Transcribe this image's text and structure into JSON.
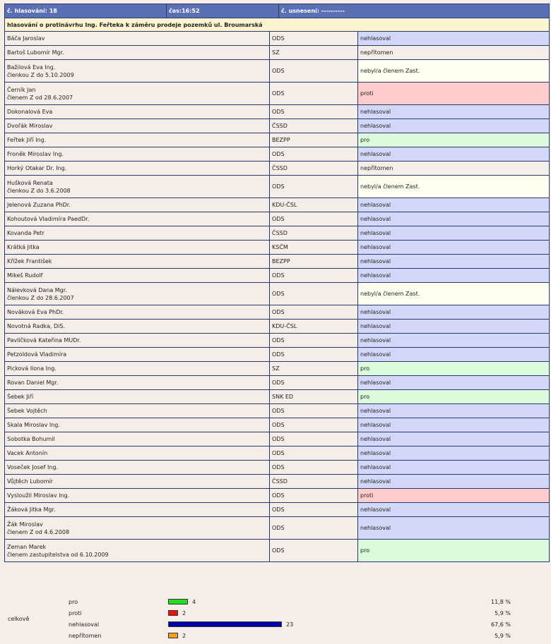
{
  "header": {
    "vote_no": "č. hlasování: 18",
    "time": "čas:16:52",
    "resolution": "č. usnesení: ----------"
  },
  "subject": "hlasování o protinávrhu Ing. Feřteka k záměru prodeje pozemků ul. Broumarská",
  "rows": [
    {
      "name": "Báča Jaroslav",
      "note": "",
      "party": "ODS",
      "result": "nehlasoval",
      "cls": "nehlasoval"
    },
    {
      "name": "Bartoš Lubomír Mgr.",
      "note": "",
      "party": "SZ",
      "result": "nepřítomen",
      "cls": "nepritomen"
    },
    {
      "name": "Bažilová Eva Ing.",
      "note": "členkou Z do 5.10.2009",
      "party": "ODS",
      "result": "nebyl/a členem Zast.",
      "cls": "nebyl"
    },
    {
      "name": "Černík Jan",
      "note": "členem Z od 28.6.2007",
      "party": "ODS",
      "result": "proti",
      "cls": "proti"
    },
    {
      "name": "Dokonalová Eva",
      "note": "",
      "party": "ODS",
      "result": "nehlasoval",
      "cls": "nehlasoval"
    },
    {
      "name": "Dvořák Miroslav",
      "note": "",
      "party": "ČSSD",
      "result": "nehlasoval",
      "cls": "nehlasoval"
    },
    {
      "name": "Feřtek Jiří Ing.",
      "note": "",
      "party": "BEZPP",
      "result": "pro",
      "cls": "pro"
    },
    {
      "name": "Froněk Miroslav Ing.",
      "note": "",
      "party": "ODS",
      "result": "nehlasoval",
      "cls": "nehlasoval"
    },
    {
      "name": "Horký Otakar Dr. Ing.",
      "note": "",
      "party": "ČSSD",
      "result": "nepřítomen",
      "cls": "nepritomen"
    },
    {
      "name": "Hušková Renata",
      "note": "členkou Z do 3.6.2008",
      "party": "ODS",
      "result": "nebyl/a členem Zast.",
      "cls": "nebyl"
    },
    {
      "name": "Jelenová Zuzana PhDr.",
      "note": "",
      "party": "KDU-ČSL",
      "result": "nehlasoval",
      "cls": "nehlasoval"
    },
    {
      "name": "Kohoutová Vladimíra PaedDr.",
      "note": "",
      "party": "ODS",
      "result": "nehlasoval",
      "cls": "nehlasoval"
    },
    {
      "name": "Kovanda Petr",
      "note": "",
      "party": "ČSSD",
      "result": "nehlasoval",
      "cls": "nehlasoval"
    },
    {
      "name": "Krátká Jitka",
      "note": "",
      "party": "KSČM",
      "result": "nehlasoval",
      "cls": "nehlasoval"
    },
    {
      "name": "Křížek František",
      "note": "",
      "party": "BEZPP",
      "result": "nehlasoval",
      "cls": "nehlasoval"
    },
    {
      "name": "Mikeš Rudolf",
      "note": "",
      "party": "ODS",
      "result": "nehlasoval",
      "cls": "nehlasoval"
    },
    {
      "name": "Nálevková Dana Mgr.",
      "note": "členkou Z do 28.6.2007",
      "party": "ODS",
      "result": "nebyl/a členem Zast.",
      "cls": "nebyl"
    },
    {
      "name": "Nováková Eva PhDr.",
      "note": "",
      "party": "ODS",
      "result": "nehlasoval",
      "cls": "nehlasoval"
    },
    {
      "name": "Novotná Radka, DiS.",
      "note": "",
      "party": "KDU-ČSL",
      "result": "nehlasoval",
      "cls": "nehlasoval"
    },
    {
      "name": "Pavlíčková Kateřina MUDr.",
      "note": "",
      "party": "ODS",
      "result": "nehlasoval",
      "cls": "nehlasoval"
    },
    {
      "name": "Petzoldová Vladimíra",
      "note": "",
      "party": "ODS",
      "result": "nehlasoval",
      "cls": "nehlasoval"
    },
    {
      "name": "Picková Ilona Ing.",
      "note": "",
      "party": "SZ",
      "result": "pro",
      "cls": "pro"
    },
    {
      "name": "Rovan Daniel Mgr.",
      "note": "",
      "party": "ODS",
      "result": "nehlasoval",
      "cls": "nehlasoval"
    },
    {
      "name": "Šebek Jiří",
      "note": "",
      "party": "SNK ED",
      "result": "pro",
      "cls": "pro"
    },
    {
      "name": "Šebek Vojtěch",
      "note": "",
      "party": "ODS",
      "result": "nehlasoval",
      "cls": "nehlasoval"
    },
    {
      "name": "Skala Miroslav Ing.",
      "note": "",
      "party": "ODS",
      "result": "nehlasoval",
      "cls": "nehlasoval"
    },
    {
      "name": "Sobotka Bohumil",
      "note": "",
      "party": "ODS",
      "result": "nehlasoval",
      "cls": "nehlasoval"
    },
    {
      "name": "Vacek Antonín",
      "note": "",
      "party": "ODS",
      "result": "nehlasoval",
      "cls": "nehlasoval"
    },
    {
      "name": "Voseček Josef Ing.",
      "note": "",
      "party": "ODS",
      "result": "nehlasoval",
      "cls": "nehlasoval"
    },
    {
      "name": "Vůjtěch Lubomír",
      "note": "",
      "party": "ČSSD",
      "result": "nehlasoval",
      "cls": "nehlasoval"
    },
    {
      "name": "Vysloužil Miroslav Ing.",
      "note": "",
      "party": "ODS",
      "result": "proti",
      "cls": "proti"
    },
    {
      "name": "Žáková Jitka Mgr.",
      "note": "",
      "party": "ODS",
      "result": "nehlasoval",
      "cls": "nehlasoval"
    },
    {
      "name": "Žák Miroslav",
      "note": "členem Z od 4.6.2008",
      "party": "ODS",
      "result": "nehlasoval",
      "cls": "nehlasoval"
    },
    {
      "name": "Zeman Marek",
      "note": "členem zastupitelstva od 6.10.2009",
      "party": "ODS",
      "result": "pro",
      "cls": "pro"
    }
  ],
  "summary": {
    "total_label": "celkově",
    "items": [
      {
        "label": "pro",
        "count": "4",
        "value": 4,
        "percent": "11,8 %",
        "color": "#22dd22"
      },
      {
        "label": "proti",
        "count": "2",
        "value": 2,
        "percent": "5,9 %",
        "color": "#ee1111"
      },
      {
        "label": "nehlasoval",
        "count": "23",
        "value": 23,
        "percent": "67,6 %",
        "color": "#0000aa"
      },
      {
        "label": "nepřítomen",
        "count": "2",
        "value": 2,
        "percent": "5,9 %",
        "color": "#f0a020"
      }
    ]
  }
}
